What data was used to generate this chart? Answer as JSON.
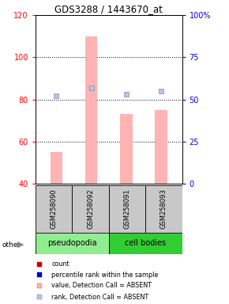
{
  "title": "GDS3288 / 1443670_at",
  "samples": [
    "GSM258090",
    "GSM258092",
    "GSM258091",
    "GSM258093"
  ],
  "bar_values": [
    55,
    110,
    73,
    75
  ],
  "rank_values": [
    52,
    57,
    53,
    55
  ],
  "ylim_left": [
    40,
    120
  ],
  "ylim_right": [
    0,
    100
  ],
  "yticks_left": [
    40,
    60,
    80,
    100,
    120
  ],
  "yticks_right": [
    0,
    25,
    50,
    75,
    100
  ],
  "bar_color": "#ffb3b3",
  "rank_color": "#b8c4e8",
  "pseudopodia_color": "#90EE90",
  "cell_bodies_color": "#32CD32",
  "legend_items": [
    {
      "label": "count",
      "color": "#CC0000"
    },
    {
      "label": "percentile rank within the sample",
      "color": "#0000CC"
    },
    {
      "label": "value, Detection Call = ABSENT",
      "color": "#ffb3b3"
    },
    {
      "label": "rank, Detection Call = ABSENT",
      "color": "#b8c4e8"
    }
  ]
}
